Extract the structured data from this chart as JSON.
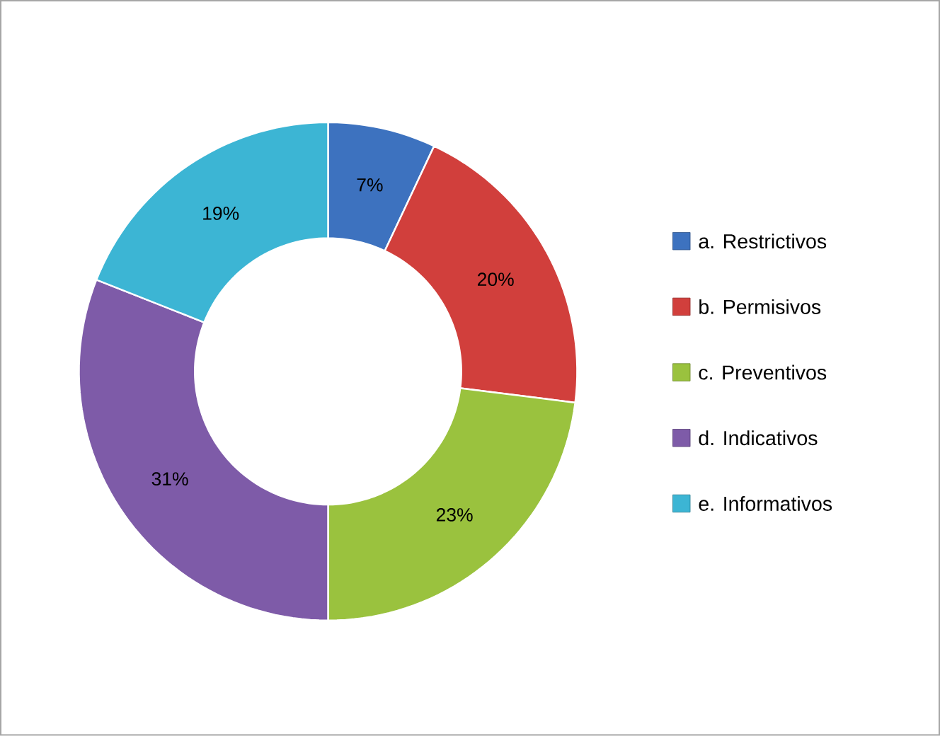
{
  "chart_data": {
    "type": "donut",
    "categories": [
      "a. Restrictivos",
      "b. Permisivos",
      "c. Preventivos",
      "d. Indicativos",
      "e. Informativos"
    ],
    "values": [
      7,
      20,
      23,
      31,
      19
    ],
    "value_labels": [
      "7%",
      "20%",
      "23%",
      "31%",
      "19%"
    ],
    "colors": [
      "#3d72bf",
      "#d13f3c",
      "#9ac23e",
      "#7e5ba8",
      "#3cb5d4"
    ],
    "legend": "right"
  }
}
